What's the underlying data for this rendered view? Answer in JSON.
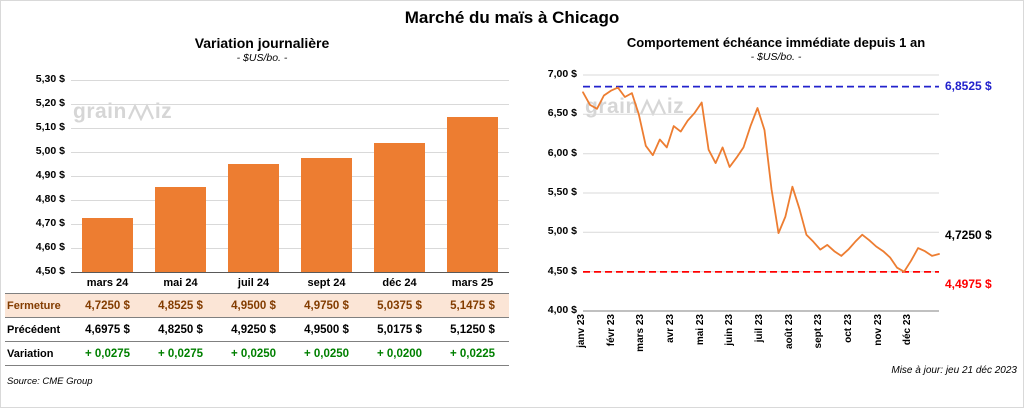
{
  "title": "Marché du maïs à Chicago",
  "source": "Source: CME Group",
  "updated": "Mise à jour: jeu 21 déc 2023",
  "watermark": {
    "prefix": "grain",
    "suffix": "iz"
  },
  "chart_data": [
    {
      "type": "bar",
      "title": "Variation journalière",
      "subtitle": "- $US/bo. -",
      "categories": [
        "mars 24",
        "mai 24",
        "juil 24",
        "sept 24",
        "déc 24",
        "mars 25"
      ],
      "values": [
        4.725,
        4.8525,
        4.95,
        4.975,
        5.0375,
        5.1475
      ],
      "ylim": [
        4.5,
        5.3
      ],
      "yticks": [
        4.5,
        4.6,
        4.7,
        4.8,
        4.9,
        5.0,
        5.1,
        5.2,
        5.3
      ],
      "ytick_labels": [
        "4,50 $",
        "4,60 $",
        "4,70 $",
        "4,80 $",
        "4,90 $",
        "5,00 $",
        "5,10 $",
        "5,20 $",
        "5,30 $"
      ],
      "bar_color": "#ED7D31",
      "grid": true,
      "legend": "none"
    },
    {
      "type": "line",
      "title": "Comportement échéance immédiate depuis 1 an",
      "subtitle": "- $US/bo. -",
      "x_labels": [
        "janv 23",
        "févr 23",
        "mars 23",
        "avr 23",
        "mai 23",
        "juin 23",
        "juil 23",
        "août 23",
        "sept 23",
        "oct 23",
        "nov 23",
        "déc 23"
      ],
      "values": [
        6.78,
        6.62,
        6.57,
        6.74,
        6.8,
        6.84,
        6.72,
        6.77,
        6.5,
        6.1,
        5.98,
        6.18,
        6.08,
        6.35,
        6.28,
        6.42,
        6.52,
        6.65,
        6.05,
        5.88,
        6.08,
        5.83,
        5.95,
        6.08,
        6.35,
        6.58,
        6.3,
        5.55,
        4.99,
        5.2,
        5.58,
        5.3,
        4.97,
        4.88,
        4.78,
        4.84,
        4.76,
        4.7,
        4.78,
        4.88,
        4.97,
        4.9,
        4.82,
        4.76,
        4.68,
        4.55,
        4.5,
        4.64,
        4.8,
        4.76,
        4.7,
        4.725
      ],
      "ylim": [
        4.0,
        7.0
      ],
      "yticks": [
        4.0,
        4.5,
        5.0,
        5.5,
        6.0,
        6.5,
        7.0
      ],
      "ytick_labels": [
        "4,00 $",
        "4,50 $",
        "5,00 $",
        "5,50 $",
        "6,00 $",
        "6,50 $",
        "7,00 $"
      ],
      "line_color": "#ED7D31",
      "hlines": [
        {
          "value": 6.8525,
          "label": "6,8525 $",
          "color": "#2222CC",
          "label_pos": "above"
        },
        {
          "value": 4.4975,
          "label": "4,4975 $",
          "color": "#FF0000",
          "label_pos": "below"
        }
      ],
      "end_label": {
        "text": "4,7250 $",
        "value": 4.725,
        "color": "#000000"
      },
      "grid": true,
      "legend": "none"
    }
  ],
  "table": {
    "header": [
      "mars 24",
      "mai 24",
      "juil 24",
      "sept 24",
      "déc 24",
      "mars 25"
    ],
    "rows": [
      {
        "label": "Fermeture",
        "style": "fermeture",
        "values": [
          "4,7250 $",
          "4,8525 $",
          "4,9500 $",
          "4,9750 $",
          "5,0375 $",
          "5,1475 $"
        ]
      },
      {
        "label": "Précédent",
        "style": "precedent",
        "values": [
          "4,6975 $",
          "4,8250 $",
          "4,9250 $",
          "4,9500 $",
          "5,0175 $",
          "5,1250 $"
        ]
      },
      {
        "label": "Variation",
        "style": "variation",
        "values": [
          "+ 0,0275",
          "+ 0,0275",
          "+ 0,0250",
          "+ 0,0250",
          "+ 0,0200",
          "+ 0,0225"
        ]
      }
    ]
  }
}
